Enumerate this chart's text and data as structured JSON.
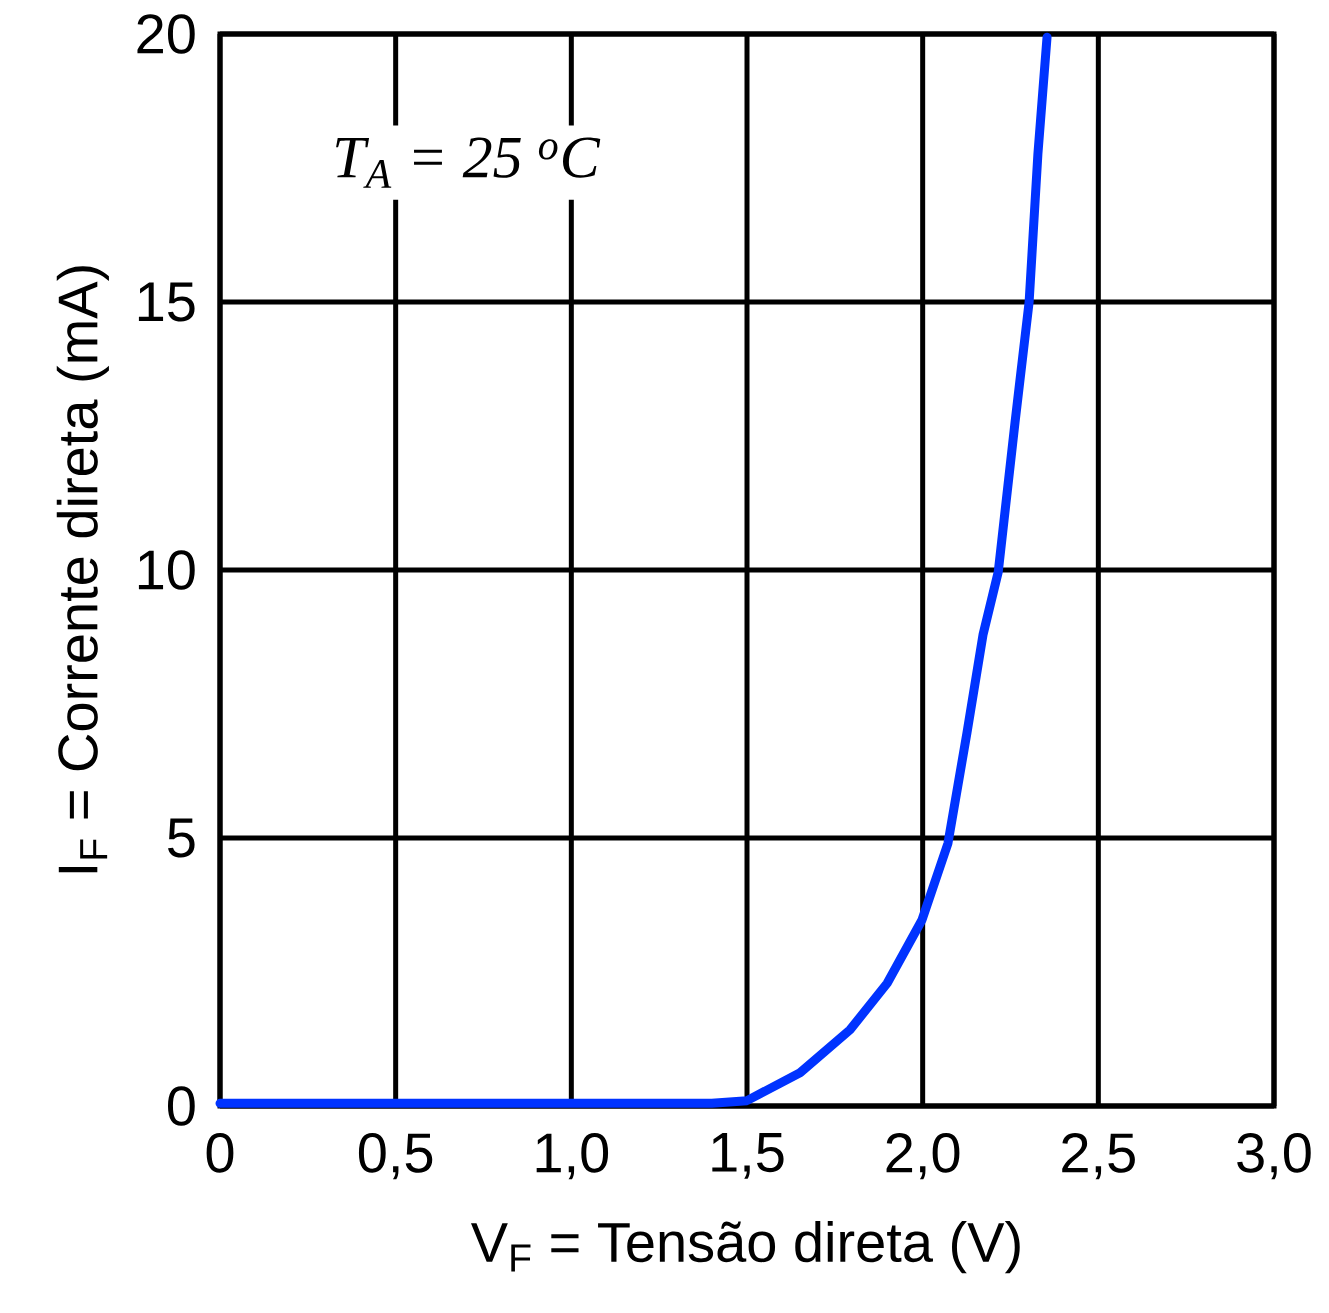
{
  "chart_data": {
    "type": "line",
    "xlabel": "V$_{F}$ = Tensão direta (V)",
    "ylabel": "I$_{F}$ = Corrente direta (mA)",
    "annotations": [
      "T$_{A}$ = 25 $^{o}$C"
    ],
    "xlim": [
      0,
      3
    ],
    "ylim": [
      0,
      20
    ],
    "xticks": [
      0,
      {
        "value": 0.5,
        "label": "0,5"
      },
      {
        "value": 1,
        "label": "1,0"
      },
      {
        "value": 1.5,
        "label": "1,5"
      },
      {
        "value": 2,
        "label": "2,0"
      },
      {
        "value": 2.5,
        "label": "2,5"
      },
      {
        "value": 3,
        "label": "3,0"
      }
    ],
    "yticks": [
      0,
      5,
      10,
      15,
      20
    ],
    "grid": true,
    "marker": "none",
    "line_style": "solid",
    "series": [
      {
        "color": "#0033ff",
        "x": [
          0,
          0.5,
          1.0,
          1.4,
          1.5,
          1.651,
          1.793,
          1.899,
          1.998,
          2.072,
          2.126,
          2.172,
          2.215,
          2.263,
          2.303,
          2.328,
          2.354
        ],
        "values": [
          0.05,
          0.05,
          0.05,
          0.05,
          0.1,
          0.62,
          1.42,
          2.29,
          3.47,
          4.9,
          6.96,
          8.8,
          9.96,
          12.76,
          15.0,
          17.76,
          19.94
        ]
      }
    ]
  }
}
